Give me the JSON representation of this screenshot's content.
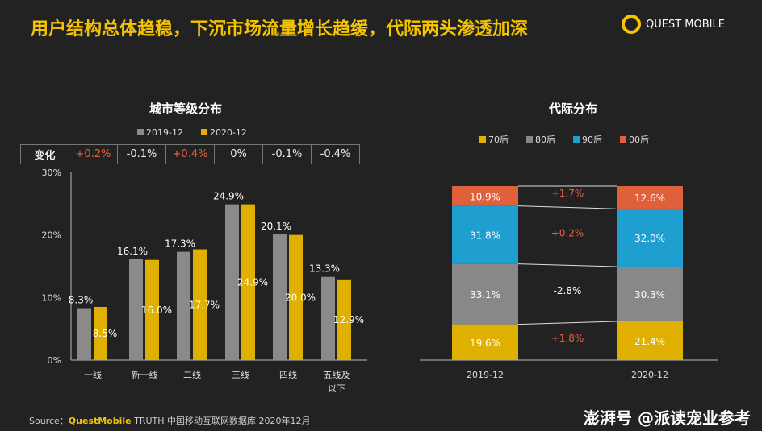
{
  "header": {
    "title": "用户结构总体趋稳，下沉市场流量增长趋缓，代际两头渗透加深",
    "logo": "QUEST MOBILE"
  },
  "chart_data": [
    {
      "type": "bar",
      "title": "城市等级分布",
      "categories": [
        "一线",
        "新一线",
        "二线",
        "三线",
        "四线",
        "五线及以下"
      ],
      "series": [
        {
          "name": "2019-12",
          "values": [
            8.3,
            16.1,
            17.3,
            24.9,
            20.1,
            13.3
          ],
          "color": "#8a8a8a"
        },
        {
          "name": "2020-12",
          "values": [
            8.5,
            16.0,
            17.7,
            24.9,
            20.0,
            12.9
          ],
          "color": "#e0b000"
        }
      ],
      "yticks": [
        "0%",
        "10%",
        "20%",
        "30%"
      ],
      "ylim": [
        0,
        30
      ],
      "change_label": "变化",
      "changes": [
        "+0.2%",
        "-0.1%",
        "+0.4%",
        "0%",
        "-0.1%",
        "-0.4%"
      ],
      "positive_color": "#e8603c"
    },
    {
      "type": "bar",
      "stacked": true,
      "title": "代际分布",
      "categories": [
        "2019-12",
        "2020-12"
      ],
      "series": [
        {
          "name": "70后",
          "values": [
            19.6,
            21.4
          ],
          "color": "#e0b000"
        },
        {
          "name": "80后",
          "values": [
            33.1,
            30.3
          ],
          "color": "#888888"
        },
        {
          "name": "90后",
          "values": [
            31.8,
            32.0
          ],
          "color": "#1e9fd0"
        },
        {
          "name": "00后",
          "values": [
            10.9,
            12.6
          ],
          "color": "#e0603c"
        }
      ],
      "changes": [
        "+1.8%",
        "-2.8%",
        "+0.2%",
        "+1.7%"
      ]
    }
  ],
  "footer": {
    "source_prefix": "Source：",
    "source_brand": "QuestMobile",
    "source_rest": " TRUTH 中国移动互联网数据库 2020年12月",
    "watermark": "澎湃号 @派读宠业参考"
  }
}
